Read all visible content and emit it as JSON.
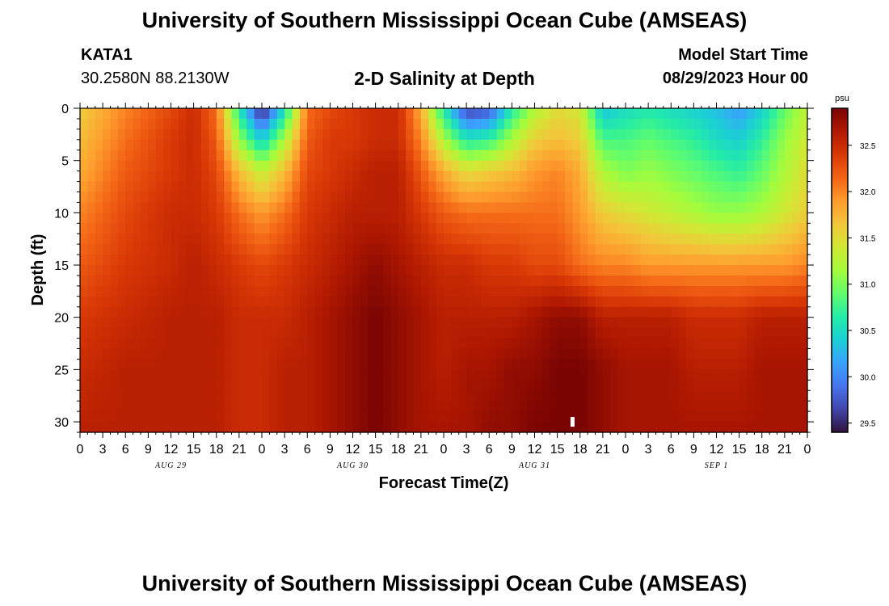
{
  "header": {
    "title": "University of Southern Mississippi Ocean Cube (AMSEAS)",
    "station_id": "KATA1",
    "coordinates": "30.2580N  88.2130W",
    "subtitle": "2-D Salinity at Depth",
    "model_start_label": "Model Start Time",
    "model_start_value": "08/29/2023 Hour 00"
  },
  "footer": {
    "title_repeat": "University of Southern Mississippi Ocean Cube (AMSEAS)"
  },
  "chart_data": {
    "type": "heatmap",
    "title": "2-D Salinity at Depth",
    "xlabel": "Forecast Time(Z)",
    "ylabel": "Depth (ft)",
    "x_range_hours": [
      0,
      96
    ],
    "y_range_ft": [
      0,
      31
    ],
    "x_tick_labels": [
      "0",
      "3",
      "6",
      "9",
      "12",
      "15",
      "18",
      "21",
      "0",
      "3",
      "6",
      "9",
      "12",
      "15",
      "18",
      "21",
      "0",
      "3",
      "6",
      "9",
      "12",
      "15",
      "18",
      "21",
      "0",
      "3",
      "6",
      "9",
      "12",
      "15",
      "18",
      "21",
      "0"
    ],
    "y_ticks": [
      0,
      5,
      10,
      15,
      20,
      25,
      30
    ],
    "day_labels": [
      {
        "label": "AUG 29",
        "hour": 12
      },
      {
        "label": "AUG 30",
        "hour": 36
      },
      {
        "label": "AUG 31",
        "hour": 60
      },
      {
        "label": "SEP 1",
        "hour": 84
      }
    ],
    "colorbar": {
      "unit": "psu",
      "min": 29.4,
      "max": 32.9,
      "tick_values": [
        29.5,
        30.0,
        30.5,
        31.0,
        31.5,
        32.0,
        32.5
      ],
      "tick_labels": [
        "29.5",
        "30.0",
        "30.5",
        "31.0",
        "31.5",
        "32.0",
        "32.5"
      ],
      "colormap": [
        "#30123b",
        "#4145ab",
        "#4675ed",
        "#39a2fc",
        "#1bcfd4",
        "#24eca6",
        "#61fc6c",
        "#a4fc3b",
        "#d1e834",
        "#f3c63a",
        "#fe9b2d",
        "#f36315",
        "#d93806",
        "#b11901",
        "#7a0403"
      ]
    },
    "times_h": [
      0,
      6,
      12,
      15,
      18,
      21,
      24,
      27,
      30,
      33,
      36,
      39,
      42,
      45,
      48,
      51,
      54,
      57,
      60,
      63,
      66,
      69,
      72,
      75,
      78,
      81,
      84,
      87,
      90,
      93,
      96
    ],
    "depths_ft": [
      0,
      3,
      6,
      10,
      15,
      20,
      25,
      31
    ],
    "salinity_psu": [
      [
        31.6,
        32.0,
        32.3,
        32.5,
        32.1,
        30.6,
        29.4,
        30.5,
        32.1,
        32.3,
        32.4,
        32.5,
        32.5,
        31.8,
        30.6,
        29.6,
        29.7,
        30.6,
        31.2,
        31.5,
        31.4,
        30.3,
        30.5,
        30.6,
        30.5,
        30.4,
        30.3,
        30.1,
        30.4,
        30.9,
        31.3
      ],
      [
        31.7,
        32.1,
        32.4,
        32.5,
        32.2,
        31.1,
        30.4,
        31.2,
        32.2,
        32.4,
        32.4,
        32.5,
        32.5,
        32.0,
        31.2,
        30.6,
        30.7,
        31.2,
        31.6,
        31.7,
        31.6,
        30.8,
        30.8,
        30.9,
        30.8,
        30.7,
        30.5,
        30.4,
        30.7,
        31.1,
        31.4
      ],
      [
        31.8,
        32.2,
        32.4,
        32.5,
        32.3,
        31.7,
        31.3,
        31.7,
        32.3,
        32.4,
        32.5,
        32.6,
        32.6,
        32.2,
        31.8,
        31.5,
        31.6,
        31.7,
        31.9,
        32.0,
        31.8,
        31.2,
        31.0,
        31.1,
        31.0,
        30.9,
        30.8,
        30.7,
        30.9,
        31.2,
        31.5
      ],
      [
        32.0,
        32.3,
        32.5,
        32.5,
        32.4,
        32.1,
        31.9,
        32.1,
        32.4,
        32.5,
        32.6,
        32.6,
        32.6,
        32.4,
        32.2,
        32.1,
        32.1,
        32.1,
        32.1,
        32.1,
        31.9,
        31.6,
        31.5,
        31.4,
        31.3,
        31.2,
        31.1,
        31.1,
        31.2,
        31.4,
        31.6
      ],
      [
        32.2,
        32.4,
        32.5,
        32.6,
        32.5,
        32.4,
        32.3,
        32.4,
        32.5,
        32.6,
        32.7,
        32.8,
        32.7,
        32.6,
        32.5,
        32.5,
        32.4,
        32.4,
        32.3,
        32.3,
        32.1,
        32.0,
        32.0,
        31.9,
        31.9,
        31.9,
        31.9,
        31.9,
        31.9,
        31.9,
        32.0
      ],
      [
        32.4,
        32.5,
        32.6,
        32.6,
        32.6,
        32.5,
        32.5,
        32.5,
        32.6,
        32.7,
        32.8,
        32.9,
        32.8,
        32.7,
        32.6,
        32.6,
        32.6,
        32.6,
        32.7,
        32.8,
        32.8,
        32.6,
        32.6,
        32.6,
        32.6,
        32.5,
        32.5,
        32.5,
        32.6,
        32.6,
        32.6
      ],
      [
        32.5,
        32.6,
        32.6,
        32.6,
        32.6,
        32.5,
        32.5,
        32.6,
        32.6,
        32.7,
        32.8,
        32.9,
        32.8,
        32.7,
        32.6,
        32.7,
        32.7,
        32.8,
        32.8,
        32.9,
        32.9,
        32.8,
        32.7,
        32.7,
        32.7,
        32.6,
        32.6,
        32.6,
        32.7,
        32.7,
        32.7
      ],
      [
        32.6,
        32.6,
        32.6,
        32.6,
        32.6,
        32.5,
        32.5,
        32.6,
        32.6,
        32.7,
        32.8,
        32.9,
        32.8,
        32.7,
        32.7,
        32.7,
        32.8,
        32.8,
        32.9,
        32.9,
        32.9,
        32.8,
        32.7,
        32.7,
        32.7,
        32.7,
        32.7,
        32.7,
        32.7,
        32.7,
        32.7
      ]
    ],
    "marker": {
      "hour": 65,
      "depth_ft": 30.0,
      "color": "#ffffff"
    }
  }
}
